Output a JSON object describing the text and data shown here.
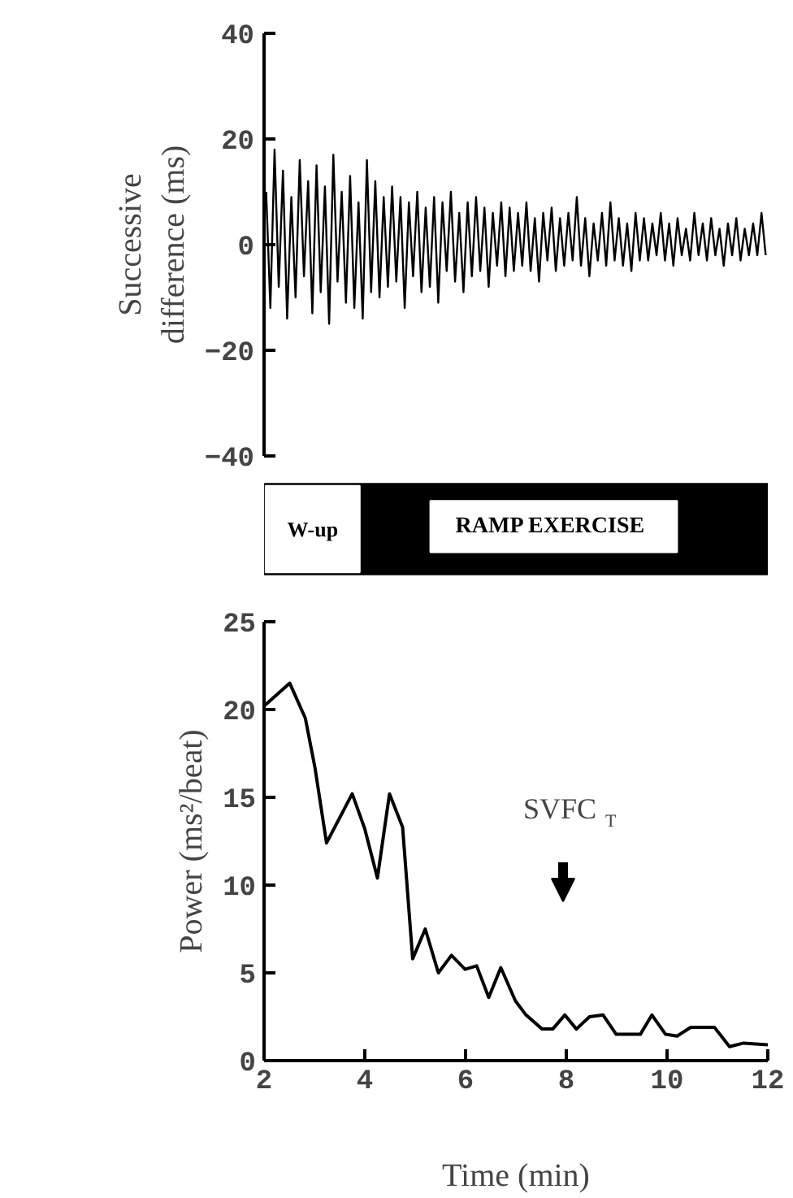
{
  "chart_data": [
    {
      "type": "line",
      "ylabel": "Successive difference (ms)",
      "categories": [
        null,
        null,
        null,
        null,
        null,
        null,
        null,
        null,
        null,
        null,
        null,
        null,
        null,
        null,
        null,
        null,
        null,
        null,
        null,
        null,
        null,
        null,
        null,
        null,
        null,
        null,
        null,
        null,
        null,
        null,
        null,
        null,
        null,
        null,
        null,
        null,
        null,
        null,
        null,
        null,
        null,
        null,
        null,
        null,
        null,
        null,
        null,
        null,
        null,
        null,
        null,
        null,
        null,
        null,
        null,
        null,
        null,
        null,
        null,
        null,
        null,
        null,
        null,
        null,
        null,
        null,
        null,
        null,
        null,
        null,
        null,
        null,
        null,
        null,
        null,
        null,
        null,
        null,
        null,
        null,
        null,
        null,
        null,
        null,
        null,
        null,
        null,
        null,
        null,
        null,
        null,
        null,
        null,
        null,
        null,
        null,
        null,
        null,
        null,
        null,
        null,
        null,
        null,
        null,
        null,
        null,
        null,
        null,
        null,
        null,
        null,
        null,
        null,
        null,
        null,
        null,
        null,
        null,
        null,
        null
      ],
      "series": [
        {
          "color": "#000000",
          "values": [
            10,
            -12,
            18,
            -8,
            14,
            -14,
            9,
            -10,
            16,
            -6,
            12,
            -13,
            15,
            -9,
            11,
            -15,
            17,
            -7,
            10,
            -11,
            13,
            -12,
            8,
            -14,
            16,
            -9,
            12,
            -10,
            9,
            -8,
            11,
            -7,
            9,
            -12,
            8,
            -6,
            10,
            -9,
            7,
            -8,
            9,
            -11,
            8,
            -5,
            10,
            -7,
            6,
            -9,
            8,
            -6,
            9,
            -5,
            7,
            -8,
            6,
            -4,
            8,
            -6,
            7,
            -5,
            6,
            -4,
            8,
            -5,
            5,
            -7,
            6,
            -3,
            7,
            -5,
            5,
            -4,
            6,
            -3,
            9,
            -4,
            5,
            -6,
            4,
            -3,
            6,
            -4,
            8,
            -3,
            5,
            -4,
            4,
            -5,
            6,
            -3,
            5,
            -3,
            4,
            -2,
            6,
            -3,
            4,
            -4,
            5,
            -2,
            3,
            -3,
            6,
            -2,
            4,
            -3,
            5,
            -2,
            3,
            -4,
            4,
            -2,
            5,
            -3,
            3,
            -2,
            4,
            -2,
            6,
            -2
          ]
        }
      ],
      "ylim": [
        -40,
        40
      ],
      "yticks": [
        -40,
        -20,
        0,
        20,
        40
      ],
      "tick_labels": "y",
      "grid": false
    },
    {
      "type": "other",
      "annotations": [
        "W-up",
        "RAMP EXERCISE"
      ]
    },
    {
      "type": "line",
      "xlabel": "Time (min)",
      "ylabel": "Power (ms²/beat)",
      "x": [
        2,
        2.51,
        2.82,
        3.01,
        3.24,
        3.75,
        4.0,
        4.25,
        4.49,
        4.75,
        4.95,
        5.2,
        5.46,
        5.72,
        5.99,
        6.22,
        6.46,
        6.7,
        6.99,
        7.2,
        7.52,
        7.73,
        7.97,
        8.2,
        8.46,
        8.73,
        8.99,
        9.47,
        9.7,
        9.97,
        10.2,
        10.47,
        10.94,
        11.24,
        11.52,
        12
      ],
      "series": [
        {
          "color": "#000000",
          "values": [
            20.2,
            21.5,
            19.5,
            16.7,
            12.4,
            15.2,
            13.2,
            10.4,
            15.2,
            13.3,
            5.8,
            7.5,
            5.0,
            6.0,
            5.2,
            5.4,
            3.6,
            5.3,
            3.4,
            2.6,
            1.8,
            1.8,
            2.6,
            1.8,
            2.5,
            2.6,
            1.5,
            1.5,
            2.6,
            1.5,
            1.4,
            1.9,
            1.9,
            0.8,
            1.0,
            0.9
          ]
        }
      ],
      "xlim": [
        2,
        12
      ],
      "xticks": [
        2,
        4,
        6,
        8,
        10,
        12
      ],
      "ylim": [
        0,
        25
      ],
      "yticks": [
        0,
        5,
        10,
        15,
        20,
        25
      ],
      "annotations": [
        "SVFC$_{T}$"
      ],
      "grid": false
    }
  ]
}
